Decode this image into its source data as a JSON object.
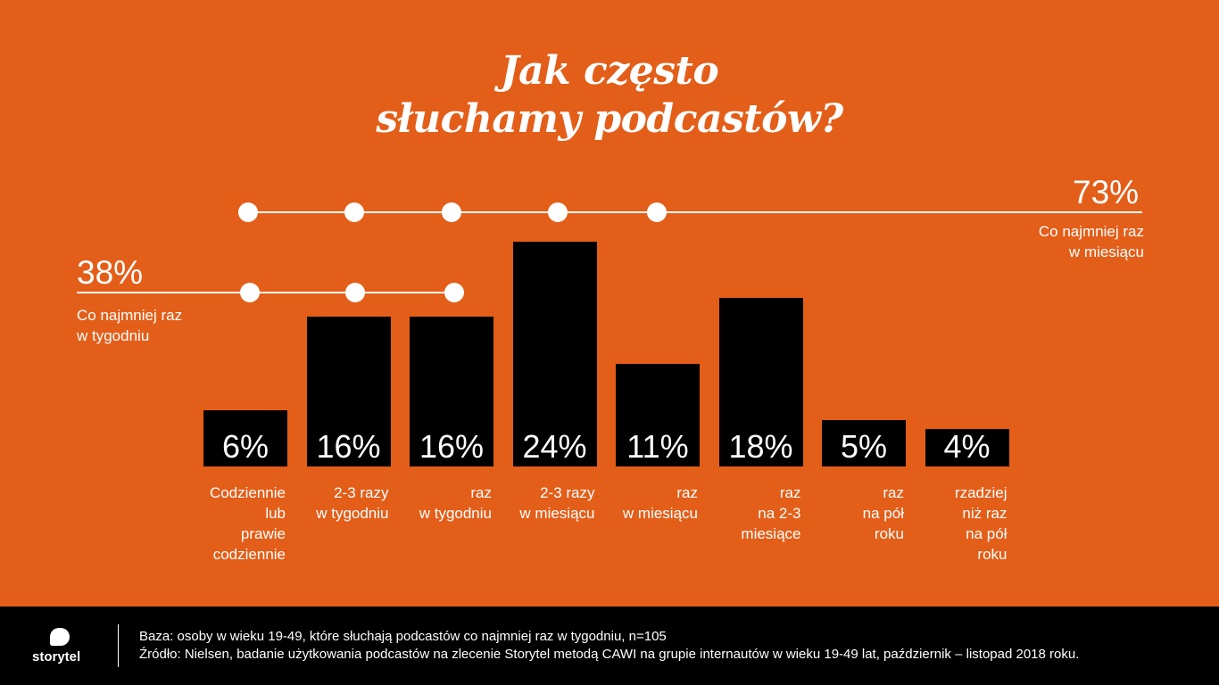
{
  "title_lines": [
    "Jak często",
    "słuchamy podcastów?"
  ],
  "chart_data": {
    "type": "bar",
    "categories": [
      "Codziennie lub prawie codziennie",
      "2-3 razy w tygodniu",
      "raz w tygodniu",
      "2-3 razy w miesiącu",
      "raz w miesiącu",
      "raz na 2-3 miesiące",
      "raz na pół roku",
      "rzadziej niż raz na pół roku"
    ],
    "category_lines": [
      [
        "Codziennie",
        "lub",
        "prawie",
        "codziennie"
      ],
      [
        "2-3 razy",
        "w tygodniu"
      ],
      [
        "raz",
        "w tygodniu"
      ],
      [
        "2-3 razy",
        "w miesiącu"
      ],
      [
        "raz",
        "w miesiącu"
      ],
      [
        "raz",
        "na 2-3",
        "miesiące"
      ],
      [
        "raz",
        "na pół",
        "roku"
      ],
      [
        "rzadziej",
        "niż raz",
        "na pół",
        "roku"
      ]
    ],
    "values": [
      6,
      16,
      16,
      24,
      11,
      18,
      5,
      4
    ],
    "value_labels": [
      "6%",
      "16%",
      "16%",
      "24%",
      "11%",
      "18%",
      "5%",
      "4%"
    ],
    "ylim": [
      0,
      24
    ],
    "bar_color": "#000000",
    "background_color": "#e35e19",
    "xlabel": "",
    "ylabel": "",
    "annotations": [
      {
        "value": "73%",
        "lines": [
          "Co najmniej raz",
          "w miesiącu"
        ],
        "categories_covered": 5
      },
      {
        "value": "38%",
        "lines": [
          "Co najmniej raz",
          "w tygodniu"
        ],
        "categories_covered": 3
      }
    ]
  },
  "footer": {
    "logo": "storytel",
    "base": "Baza: osoby w wieku 19-49, które słuchają podcastów co najmniej raz w tygodniu, n=105",
    "source": "Źródło: Nielsen, badanie użytkowania podcastów na zlecenie Storytel metodą CAWI na grupie internautów w wieku 19-49 lat, październik – listopad 2018 roku."
  }
}
